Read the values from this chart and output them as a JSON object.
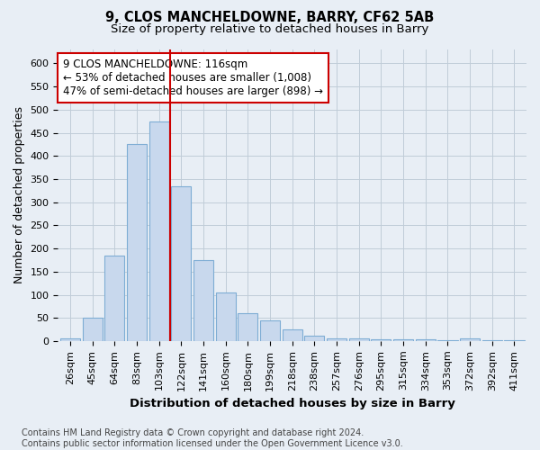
{
  "title": "9, CLOS MANCHELDOWNE, BARRY, CF62 5AB",
  "subtitle": "Size of property relative to detached houses in Barry",
  "xlabel": "Distribution of detached houses by size in Barry",
  "ylabel": "Number of detached properties",
  "categories": [
    "26sqm",
    "45sqm",
    "64sqm",
    "83sqm",
    "103sqm",
    "122sqm",
    "141sqm",
    "160sqm",
    "180sqm",
    "199sqm",
    "218sqm",
    "238sqm",
    "257sqm",
    "276sqm",
    "295sqm",
    "315sqm",
    "334sqm",
    "353sqm",
    "372sqm",
    "392sqm",
    "411sqm"
  ],
  "values": [
    5,
    50,
    185,
    425,
    475,
    335,
    175,
    105,
    60,
    45,
    25,
    12,
    5,
    5,
    3,
    3,
    3,
    1,
    5,
    1,
    1
  ],
  "bar_color": "#c8d8ed",
  "bar_edge_color": "#7eadd4",
  "highlight_bar_index": 4,
  "highlight_color": "#cc0000",
  "annotation_text": "9 CLOS MANCHELDOWNE: 116sqm\n← 53% of detached houses are smaller (1,008)\n47% of semi-detached houses are larger (898) →",
  "annotation_box_color": "#ffffff",
  "annotation_box_edge_color": "#cc0000",
  "ylim": [
    0,
    630
  ],
  "yticks": [
    0,
    50,
    100,
    150,
    200,
    250,
    300,
    350,
    400,
    450,
    500,
    550,
    600
  ],
  "footnote": "Contains HM Land Registry data © Crown copyright and database right 2024.\nContains public sector information licensed under the Open Government Licence v3.0.",
  "title_fontsize": 10.5,
  "subtitle_fontsize": 9.5,
  "xlabel_fontsize": 9.5,
  "ylabel_fontsize": 9,
  "tick_fontsize": 8,
  "annotation_fontsize": 8.5,
  "footnote_fontsize": 7,
  "background_color": "#e8eef5",
  "plot_bg_color": "#e8eef5",
  "grid_color": "#c0ccd8"
}
